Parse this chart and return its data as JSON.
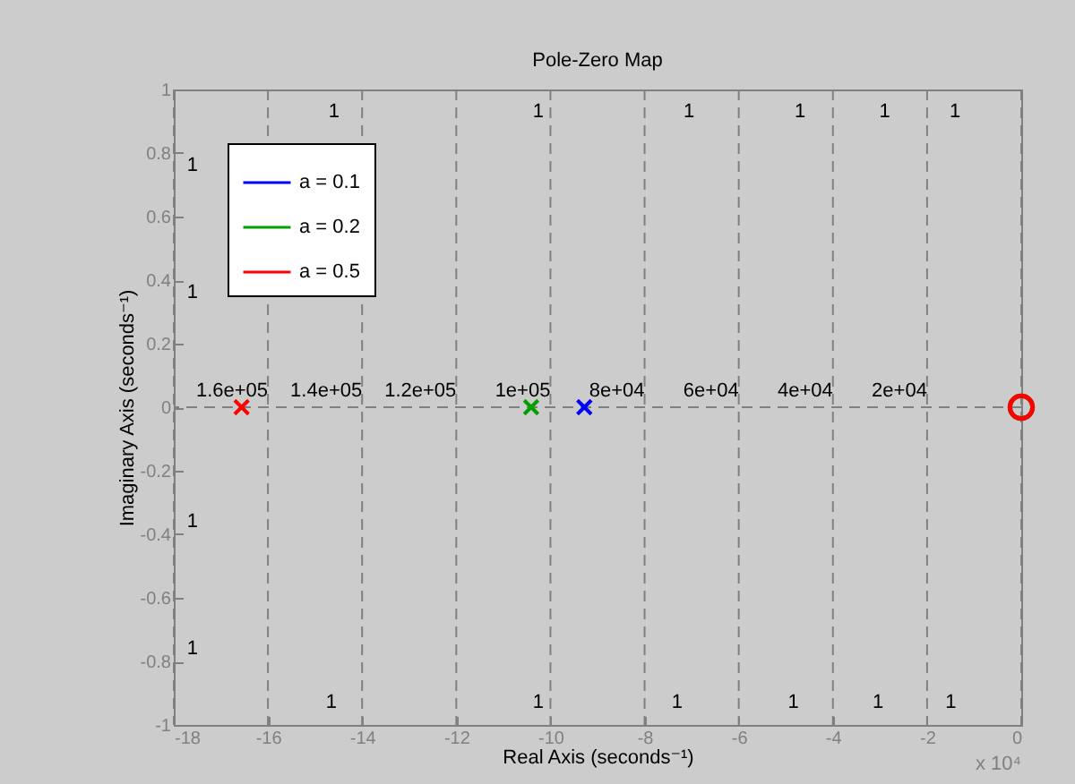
{
  "chart_data": {
    "type": "scatter",
    "title": "Pole-Zero Map",
    "xlabel": "Real Axis (seconds⁻¹)",
    "ylabel": "Imaginary Axis (seconds⁻¹)",
    "series": [
      {
        "name": "a = 0.1",
        "color": "#0000ff",
        "marker": "cross",
        "x": [
          -9.28
        ],
        "values": [
          0
        ]
      },
      {
        "name": "a = 0.2",
        "color": "#00a000",
        "marker": "cross",
        "x": [
          -10.41
        ],
        "values": [
          0
        ]
      },
      {
        "name": "a = 0.5",
        "color": "#ff0000",
        "marker": "cross",
        "x": [
          -16.56
        ],
        "values": [
          0
        ]
      },
      {
        "color": "#00a000",
        "marker": "circle",
        "x": [
          0
        ],
        "values": [
          0
        ]
      },
      {
        "color": "#ff0000",
        "marker": "circle",
        "x": [
          0
        ],
        "values": [
          0
        ]
      }
    ],
    "xlim": [
      -18,
      0
    ],
    "xticks": [
      -18,
      -16,
      -14,
      -12,
      -10,
      -8,
      -6,
      -4,
      -2,
      0
    ],
    "ylim": [
      -1,
      1
    ],
    "yticks": [
      -1,
      -0.8,
      -0.6,
      -0.4,
      -0.2,
      0,
      0.2,
      0.4,
      0.6,
      0.8,
      1
    ],
    "grid": "x",
    "legend": "top left",
    "ref_lines": [
      {
        "axis": "y",
        "value": 0,
        "color": "#808080",
        "line_style": "dashed"
      }
    ],
    "annotations": [
      "x 10⁴",
      {
        "text": "1.6e+05",
        "x": -16,
        "y": 0
      },
      {
        "text": "1.4e+05",
        "x": -14,
        "y": 0
      },
      {
        "text": "1.2e+05",
        "x": -12,
        "y": 0
      },
      {
        "text": "1e+05",
        "x": -10,
        "y": 0
      },
      {
        "text": "8e+04",
        "x": -8,
        "y": 0
      },
      {
        "text": "6e+04",
        "x": -6,
        "y": 0
      },
      {
        "text": "4e+04",
        "x": -4,
        "y": 0
      },
      {
        "text": "2e+04",
        "x": -2,
        "y": 0
      },
      "1",
      "1",
      "1",
      "1",
      "1",
      "1",
      "1",
      "1",
      "1",
      "1",
      "1",
      "1",
      "1",
      "1",
      "1",
      "1"
    ]
  }
}
